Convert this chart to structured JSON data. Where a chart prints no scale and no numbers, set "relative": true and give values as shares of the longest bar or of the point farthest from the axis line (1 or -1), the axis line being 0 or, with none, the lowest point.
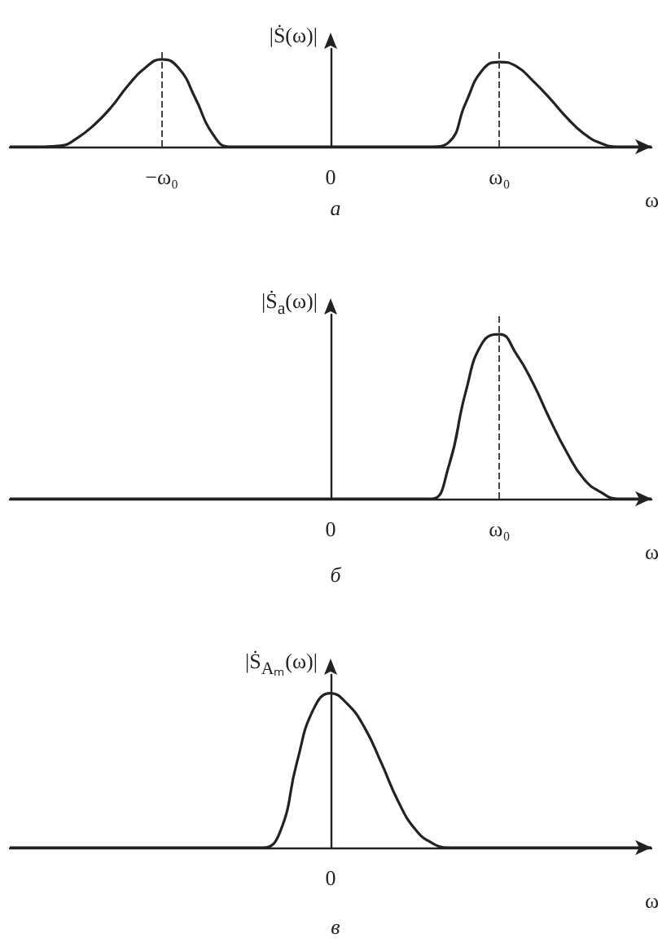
{
  "chart_data": [
    {
      "type": "line",
      "relative": true,
      "ylabel": "|Ṡ(ω)|",
      "xlabel": "ω",
      "marker": "none",
      "annotations": [
        "а"
      ],
      "categories": [
        null,
        null,
        null,
        null,
        null,
        null,
        null,
        null,
        null,
        "−ω₀",
        null,
        null,
        null,
        null,
        null,
        null,
        null,
        null,
        null,
        "0",
        null,
        null,
        null,
        null,
        null,
        null,
        null,
        null,
        null,
        "ω₀",
        null,
        null,
        null,
        null,
        null,
        null,
        null,
        null,
        null
      ],
      "series": [
        {
          "color": "#222222",
          "values": [
            0,
            0,
            0,
            0.01,
            0.1,
            0.25,
            0.45,
            0.7,
            0.9,
            1,
            0.9,
            0.55,
            0.15,
            0,
            0,
            0,
            0,
            0,
            0,
            0,
            0,
            0,
            0,
            0,
            0,
            0,
            0.05,
            0.5,
            0.88,
            0.97,
            0.92,
            0.75,
            0.55,
            0.33,
            0.15,
            0.04,
            0,
            0,
            0
          ]
        }
      ],
      "ref_lines": [
        {
          "axis": "x",
          "value": "−ω₀",
          "color": "#444444",
          "line_style": "dashed"
        },
        {
          "axis": "x",
          "value": "ω₀",
          "color": "#444444",
          "line_style": "dashed"
        }
      ]
    },
    {
      "type": "line",
      "relative": true,
      "ylabel": "|Ṡ$_{a}$(ω)|",
      "xlabel": "ω",
      "marker": "none",
      "annotations": [
        "б"
      ],
      "categories": [
        null,
        null,
        null,
        null,
        null,
        null,
        null,
        null,
        null,
        null,
        null,
        null,
        null,
        null,
        null,
        null,
        null,
        null,
        null,
        "0",
        null,
        null,
        null,
        null,
        null,
        null,
        null,
        null,
        null,
        "ω₀",
        null,
        null,
        null,
        null,
        null,
        null,
        null,
        null,
        null
      ],
      "series": [
        {
          "color": "#222222",
          "values": [
            0,
            0,
            0,
            0,
            0,
            0,
            0,
            0,
            0,
            0,
            0,
            0,
            0,
            0,
            0,
            0,
            0,
            0,
            0,
            0,
            0,
            0,
            0,
            0,
            0,
            0,
            0.2,
            0.65,
            0.95,
            1,
            0.88,
            0.7,
            0.48,
            0.28,
            0.12,
            0.04,
            0,
            0,
            0
          ]
        }
      ],
      "ref_lines": [
        {
          "axis": "x",
          "value": "ω₀",
          "color": "#444444",
          "line_style": "dashed"
        }
      ]
    },
    {
      "type": "line",
      "relative": true,
      "ylabel": "|Ṡ$_{Aₘ}$(ω)|",
      "xlabel": "ω",
      "marker": "none",
      "annotations": [
        "0",
        "в"
      ],
      "categories": [
        null,
        null,
        null,
        null,
        null,
        null,
        null,
        null,
        null,
        null,
        null,
        null,
        null,
        null,
        null,
        null,
        null,
        null,
        null,
        null,
        null,
        null,
        null,
        null,
        null,
        null,
        null,
        null,
        null,
        null,
        null,
        null,
        null,
        null,
        null,
        null,
        null,
        null,
        null
      ],
      "series": [
        {
          "color": "#222222",
          "values": [
            0,
            0,
            0,
            0,
            0,
            0,
            0,
            0,
            0,
            0,
            0,
            0,
            0,
            0,
            0,
            0,
            0.1,
            0.55,
            0.9,
            1,
            0.93,
            0.78,
            0.55,
            0.3,
            0.12,
            0.03,
            0,
            0,
            0,
            0,
            0,
            0,
            0,
            0,
            0,
            0,
            0,
            0,
            0
          ]
        }
      ]
    }
  ]
}
